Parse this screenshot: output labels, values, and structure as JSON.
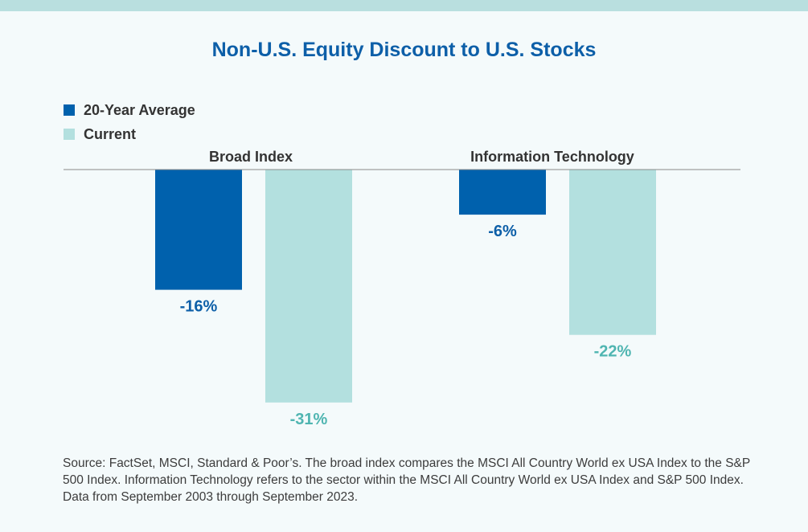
{
  "chart_data": {
    "type": "bar",
    "title": "Non-U.S. Equity Discount to U.S. Stocks",
    "categories": [
      "Broad Index",
      "Information Technology"
    ],
    "series": [
      {
        "name": "20-Year Average",
        "color": "#0061ad",
        "label_color": "#0d5fa8",
        "values": [
          -16,
          -6
        ],
        "labels": [
          "-16%",
          "-6%"
        ]
      },
      {
        "name": "Current",
        "color": "#b3e0df",
        "label_color": "#4fb5b1",
        "values": [
          -31,
          -22
        ],
        "labels": [
          "-31%",
          "-22%"
        ]
      }
    ],
    "ylim": [
      -35,
      0
    ],
    "xlabel": "",
    "ylabel": ""
  },
  "legend": [
    {
      "label": "20-Year Average",
      "color": "#0061ad"
    },
    {
      "label": "Current",
      "color": "#b3e0df"
    }
  ],
  "source_note": "Source: FactSet, MSCI, Standard & Poor’s. The broad index compares the MSCI All Country World ex USA Index to the S&P 500 Index. Information Technology refers to the sector within the MSCI All Country World ex USA Index and S&P 500 Index. Data from September 2003 through September 2023."
}
